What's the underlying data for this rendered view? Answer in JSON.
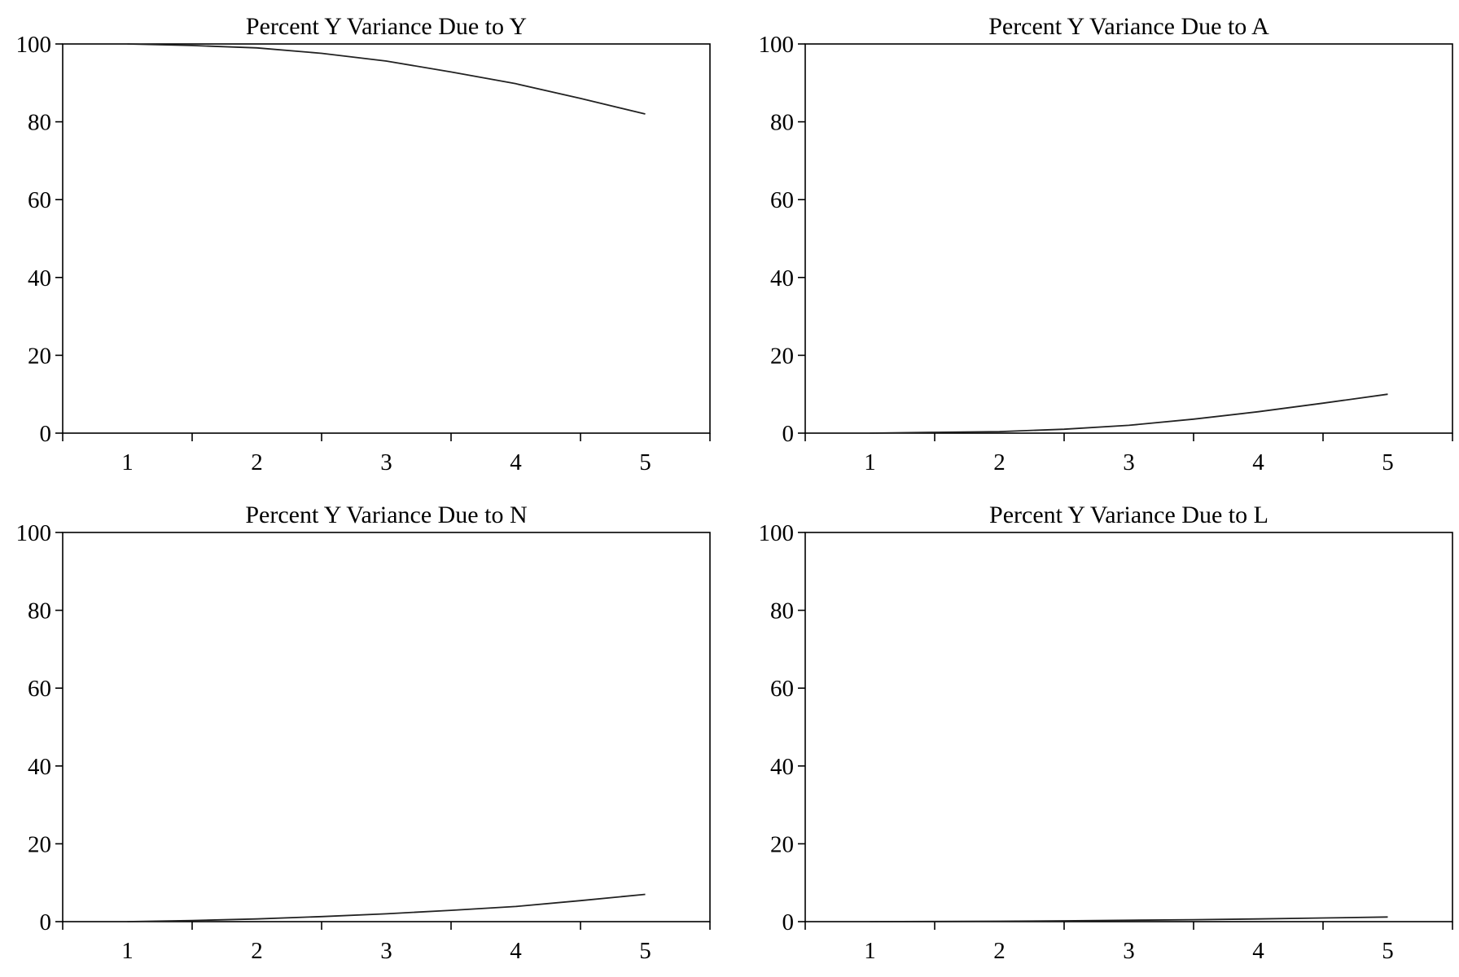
{
  "chart_data": [
    {
      "type": "line",
      "title": "Percent Y Variance Due to Y",
      "xlabel": "",
      "ylabel": "",
      "x": [
        1,
        1.5,
        2,
        2.5,
        3,
        3.5,
        4,
        4.5,
        5
      ],
      "series": [
        {
          "values": [
            100,
            99.6,
            99.0,
            97.6,
            95.6,
            92.8,
            89.8,
            86.0,
            82.0
          ]
        }
      ],
      "xticks": [
        1,
        2,
        3,
        4,
        5
      ],
      "yticks": [
        0,
        20,
        40,
        60,
        80,
        100
      ],
      "xlim": [
        0.5,
        5.5
      ],
      "ylim": [
        0,
        100
      ],
      "grid": false
    },
    {
      "type": "line",
      "title": "Percent Y Variance Due to A",
      "xlabel": "",
      "ylabel": "",
      "x": [
        1,
        1.5,
        2,
        2.5,
        3,
        3.5,
        4,
        4.5,
        5
      ],
      "series": [
        {
          "values": [
            0,
            0.2,
            0.4,
            1.0,
            2.0,
            3.6,
            5.5,
            7.7,
            10.0
          ]
        }
      ],
      "xticks": [
        1,
        2,
        3,
        4,
        5
      ],
      "yticks": [
        0,
        20,
        40,
        60,
        80,
        100
      ],
      "xlim": [
        0.5,
        5.5
      ],
      "ylim": [
        0,
        100
      ],
      "grid": false
    },
    {
      "type": "line",
      "title": "Percent Y Variance Due to N",
      "xlabel": "",
      "ylabel": "",
      "x": [
        1,
        1.5,
        2,
        2.5,
        3,
        3.5,
        4,
        4.5,
        5
      ],
      "series": [
        {
          "values": [
            0,
            0.3,
            0.7,
            1.3,
            2.0,
            2.9,
            3.9,
            5.4,
            7.0
          ]
        }
      ],
      "xticks": [
        1,
        2,
        3,
        4,
        5
      ],
      "yticks": [
        0,
        20,
        40,
        60,
        80,
        100
      ],
      "xlim": [
        0.5,
        5.5
      ],
      "ylim": [
        0,
        100
      ],
      "grid": false
    },
    {
      "type": "line",
      "title": "Percent Y Variance Due to L",
      "xlabel": "",
      "ylabel": "",
      "x": [
        1,
        1.5,
        2,
        2.5,
        3,
        3.5,
        4,
        4.5,
        5
      ],
      "series": [
        {
          "values": [
            0,
            0.05,
            0.1,
            0.2,
            0.35,
            0.5,
            0.7,
            0.95,
            1.2
          ]
        }
      ],
      "xticks": [
        1,
        2,
        3,
        4,
        5
      ],
      "yticks": [
        0,
        20,
        40,
        60,
        80,
        100
      ],
      "xlim": [
        0.5,
        5.5
      ],
      "ylim": [
        0,
        100
      ],
      "grid": false
    }
  ]
}
